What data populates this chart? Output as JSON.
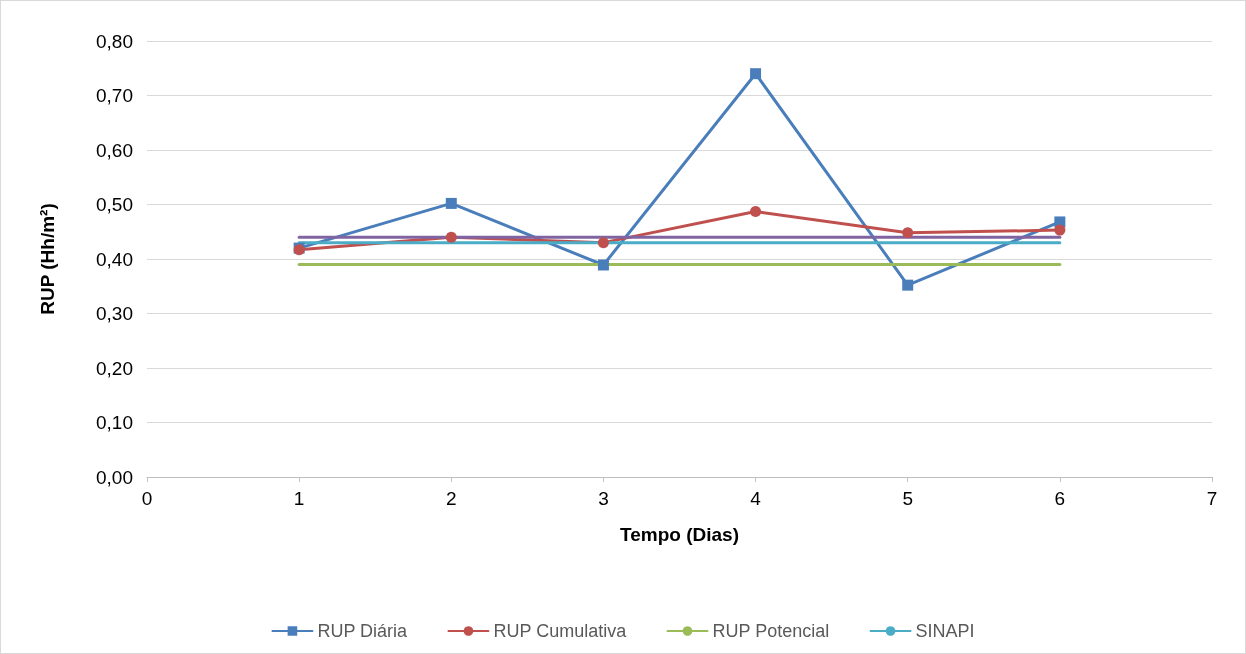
{
  "chart_data": {
    "type": "line",
    "xlabel": "Tempo (Dias)",
    "ylabel": "RUP (Hh/m²)",
    "x": [
      1,
      2,
      3,
      4,
      5,
      6
    ],
    "xlim": [
      0,
      7
    ],
    "xticks": [
      0,
      1,
      2,
      3,
      4,
      5,
      6,
      7
    ],
    "ylim": [
      0,
      0.8
    ],
    "yticks": [
      {
        "value": 0,
        "label": "0,00"
      },
      {
        "value": 0.1,
        "label": "0,10"
      },
      {
        "value": 0.2,
        "label": "0,20"
      },
      {
        "value": 0.3,
        "label": "0,30"
      },
      {
        "value": 0.4,
        "label": "0,40"
      },
      {
        "value": 0.5,
        "label": "0,50"
      },
      {
        "value": 0.6,
        "label": "0,60"
      },
      {
        "value": 0.7,
        "label": "0,70"
      },
      {
        "value": 0.8,
        "label": "0,80"
      }
    ],
    "grid": "y",
    "legend": "bottom",
    "line_style": "solid",
    "series": [
      {
        "name": "RUP Diária",
        "color": "#4a7ebb",
        "marker": "square",
        "values": [
          0.42,
          0.502,
          0.389,
          0.74,
          0.352,
          0.468
        ]
      },
      {
        "name": "RUP Cumulativa",
        "color": "#c0504d",
        "marker": "circle",
        "values": [
          0.417,
          0.44,
          0.43,
          0.487,
          0.448,
          0.453
        ]
      },
      {
        "name": "RUP Potencial",
        "color": "#9bbb59",
        "marker": "none",
        "values": [
          0.39,
          0.39,
          0.39,
          0.39,
          0.39,
          0.39
        ]
      },
      {
        "color": "#8064a2",
        "marker": "none",
        "values": [
          0.44,
          0.44,
          0.44,
          0.44,
          0.44,
          0.44
        ]
      },
      {
        "name": "SINAPI",
        "color": "#4bacc6",
        "marker": "none",
        "values": [
          0.43,
          0.43,
          0.43,
          0.43,
          0.43,
          0.43
        ]
      }
    ]
  }
}
